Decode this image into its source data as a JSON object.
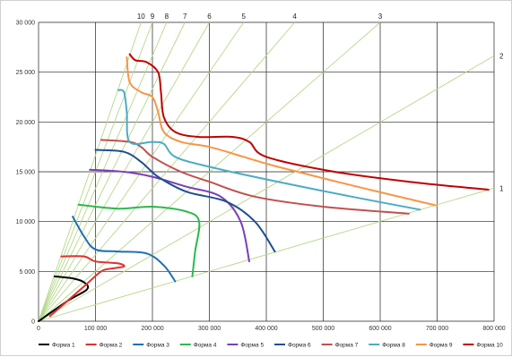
{
  "chart_data": {
    "type": "line",
    "title": "",
    "xlabel": "",
    "ylabel": "",
    "xlim": [
      0,
      800000
    ],
    "ylim": [
      0,
      30000
    ],
    "x_ticks": [
      0,
      100000,
      200000,
      300000,
      400000,
      500000,
      600000,
      700000,
      800000
    ],
    "x_tick_labels": [
      "0",
      "100 000",
      "200 000",
      "300 000",
      "400 000",
      "500 000",
      "600 000",
      "700 000",
      "800 000"
    ],
    "y_ticks": [
      0,
      5000,
      10000,
      15000,
      20000,
      25000,
      30000
    ],
    "y_tick_labels": [
      "0",
      "5 000",
      "10 000",
      "15 000",
      "20 000",
      "25 000",
      "30 000"
    ],
    "grid": true,
    "legend_position": "bottom",
    "rays": [
      {
        "label": "1",
        "slope": 0.0167
      },
      {
        "label": "2",
        "slope": 0.0333
      },
      {
        "label": "3",
        "slope": 0.05
      },
      {
        "label": "4",
        "slope": 0.0667
      },
      {
        "label": "5",
        "slope": 0.0833
      },
      {
        "label": "6",
        "slope": 0.1
      },
      {
        "label": "7",
        "slope": 0.1167
      },
      {
        "label": "8",
        "slope": 0.1333
      },
      {
        "label": "9",
        "slope": 0.15
      },
      {
        "label": "10",
        "slope": 0.1667
      }
    ],
    "series": [
      {
        "name": "Форма 1",
        "color": "#000000",
        "points": [
          [
            0,
            0
          ],
          [
            50000,
            2000
          ],
          [
            85000,
            3200
          ],
          [
            80000,
            3900
          ],
          [
            60000,
            4300
          ],
          [
            28000,
            4500
          ]
        ]
      },
      {
        "name": "Форма 2",
        "color": "#e03030",
        "points": [
          [
            20000,
            500
          ],
          [
            80000,
            3500
          ],
          [
            110000,
            5000
          ],
          [
            130000,
            5300
          ],
          [
            150000,
            5500
          ],
          [
            140000,
            5800
          ],
          [
            100000,
            6000
          ],
          [
            80000,
            6500
          ],
          [
            40000,
            6500
          ]
        ]
      },
      {
        "name": "Форма 3",
        "color": "#1f6fb4",
        "points": [
          [
            240000,
            4000
          ],
          [
            220000,
            5600
          ],
          [
            190000,
            6800
          ],
          [
            140000,
            7000
          ],
          [
            100000,
            7200
          ],
          [
            80000,
            8500
          ],
          [
            60000,
            10500
          ]
        ]
      },
      {
        "name": "Форма 4",
        "color": "#2db84d",
        "points": [
          [
            270000,
            4500
          ],
          [
            275000,
            7000
          ],
          [
            282000,
            10000
          ],
          [
            260000,
            11000
          ],
          [
            200000,
            11500
          ],
          [
            140000,
            11300
          ],
          [
            70000,
            11700
          ]
        ]
      },
      {
        "name": "Форма 5",
        "color": "#7b3fb5",
        "points": [
          [
            370000,
            6000
          ],
          [
            355000,
            10000
          ],
          [
            320000,
            12500
          ],
          [
            260000,
            13500
          ],
          [
            200000,
            14500
          ],
          [
            150000,
            15000
          ],
          [
            90000,
            15200
          ]
        ]
      },
      {
        "name": "Форма 6",
        "color": "#1d4f91",
        "points": [
          [
            415000,
            7000
          ],
          [
            380000,
            10000
          ],
          [
            330000,
            12000
          ],
          [
            260000,
            13000
          ],
          [
            210000,
            14500
          ],
          [
            180000,
            16000
          ],
          [
            150000,
            17000
          ],
          [
            100000,
            17200
          ]
        ]
      },
      {
        "name": "Форма 7",
        "color": "#c0504d",
        "points": [
          [
            650000,
            10800
          ],
          [
            500000,
            11500
          ],
          [
            380000,
            12500
          ],
          [
            300000,
            14000
          ],
          [
            250000,
            15000
          ],
          [
            200000,
            16500
          ],
          [
            180000,
            17500
          ],
          [
            160000,
            18000
          ],
          [
            110000,
            18200
          ]
        ]
      },
      {
        "name": "Форма 8",
        "color": "#4bacc6",
        "points": [
          [
            670000,
            11200
          ],
          [
            550000,
            12500
          ],
          [
            420000,
            14000
          ],
          [
            300000,
            15500
          ],
          [
            240000,
            16500
          ],
          [
            220000,
            17800
          ],
          [
            200000,
            18000
          ],
          [
            160000,
            18000
          ],
          [
            155000,
            21000
          ],
          [
            150000,
            23000
          ],
          [
            140000,
            23200
          ]
        ]
      },
      {
        "name": "Форма 9",
        "color": "#f79646",
        "points": [
          [
            700000,
            11600
          ],
          [
            560000,
            13500
          ],
          [
            420000,
            15500
          ],
          [
            360000,
            16500
          ],
          [
            300000,
            17500
          ],
          [
            250000,
            18000
          ],
          [
            220000,
            19000
          ],
          [
            210000,
            21000
          ],
          [
            200000,
            22500
          ],
          [
            180000,
            23000
          ],
          [
            160000,
            24000
          ],
          [
            155000,
            26500
          ]
        ]
      },
      {
        "name": "Форма 10",
        "color": "#c00000",
        "points": [
          [
            790000,
            13200
          ],
          [
            650000,
            14000
          ],
          [
            520000,
            15000
          ],
          [
            400000,
            16500
          ],
          [
            370000,
            18000
          ],
          [
            340000,
            18500
          ],
          [
            280000,
            18500
          ],
          [
            240000,
            19000
          ],
          [
            220000,
            20500
          ],
          [
            215000,
            23000
          ],
          [
            210000,
            25000
          ],
          [
            190000,
            26000
          ],
          [
            170000,
            26200
          ],
          [
            160000,
            26800
          ]
        ]
      }
    ]
  }
}
